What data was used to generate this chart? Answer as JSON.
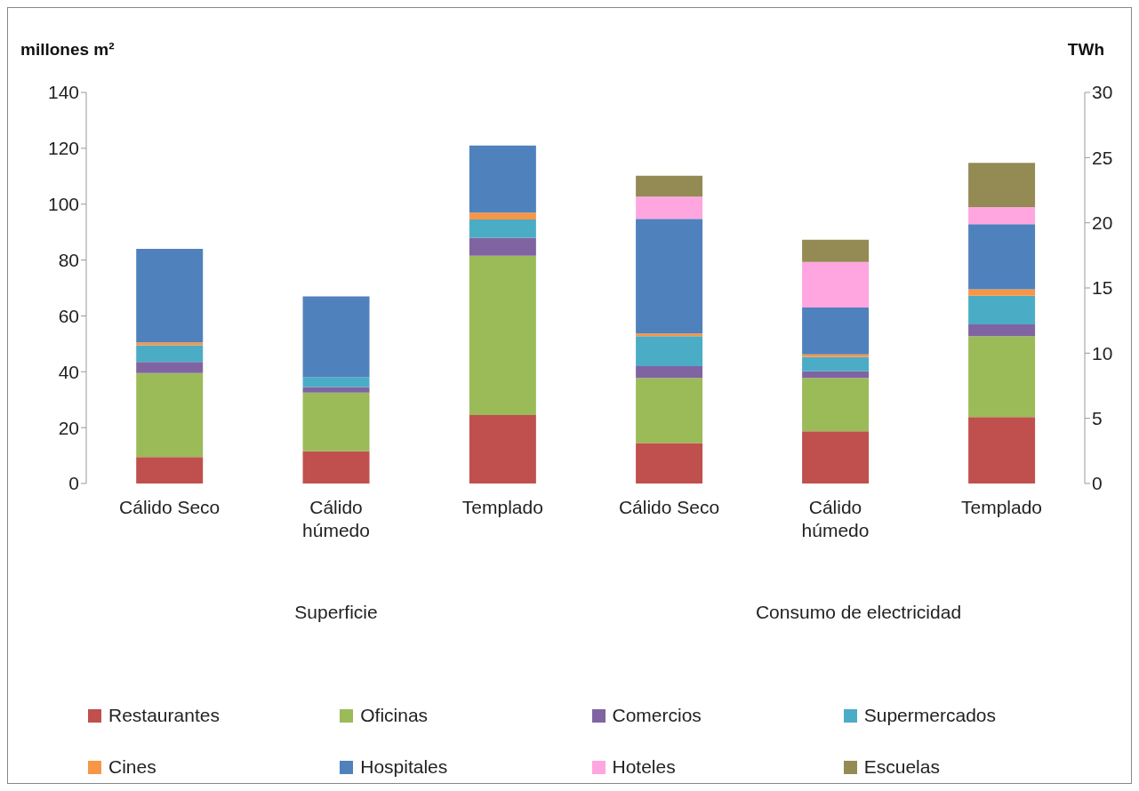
{
  "chart_data": [
    {
      "type": "bar",
      "stacked": true,
      "xlabel": "Superficie",
      "ylabel": "millones m²",
      "categories": [
        "Cálido Seco",
        "Cálido húmedo",
        "Templado"
      ],
      "ylim": [
        0,
        140
      ],
      "yticks": [
        0,
        20,
        40,
        60,
        80,
        100,
        120,
        140
      ],
      "series": [
        {
          "color": "#c0504d",
          "values": [
            9.5,
            11.5,
            24.5
          ]
        },
        {
          "color": "#9bbb59",
          "values": [
            30,
            21,
            57
          ]
        },
        {
          "color": "#8064a2",
          "values": [
            4,
            2,
            6.5
          ]
        },
        {
          "color": "#4bacc6",
          "values": [
            6,
            3.5,
            6.5
          ]
        },
        {
          "color": "#f79646",
          "values": [
            1,
            0,
            2.5
          ]
        },
        {
          "color": "#4f81bd",
          "values": [
            33.5,
            29,
            24
          ]
        }
      ]
    },
    {
      "type": "bar",
      "stacked": true,
      "xlabel": "Consumo de electricidad",
      "y2label": "TWh",
      "categories": [
        "Cálido Seco",
        "Cálido húmedo",
        "Templado"
      ],
      "y2lim": [
        0,
        30
      ],
      "y2ticks": [
        0,
        5,
        10,
        15,
        20,
        25,
        30
      ],
      "legend": "bottom",
      "series": [
        {
          "name": "Restaurantes",
          "color": "#c0504d",
          "axis": "y2",
          "values": [
            3.1,
            4.0,
            5.1
          ]
        },
        {
          "name": "Oficinas",
          "color": "#9bbb59",
          "axis": "y2",
          "values": [
            5.0,
            4.1,
            6.2
          ]
        },
        {
          "name": "Comercios",
          "color": "#8064a2",
          "axis": "y2",
          "values": [
            0.9,
            0.5,
            0.9
          ]
        },
        {
          "name": "Supermercados",
          "color": "#4bacc6",
          "axis": "y2",
          "values": [
            2.3,
            1.1,
            2.2
          ]
        },
        {
          "name": "Cines",
          "color": "#f79646",
          "axis": "y2",
          "values": [
            0.2,
            0.2,
            0.5
          ]
        },
        {
          "name": "Hospitales",
          "color": "#4f81bd",
          "axis": "y2",
          "values": [
            8.8,
            3.6,
            5.0
          ]
        },
        {
          "name": "Hoteles",
          "color": "#ffa6e0",
          "axis": "y2",
          "values": [
            1.7,
            3.5,
            1.3
          ]
        },
        {
          "name": "Escuelas",
          "color": "#948a54",
          "axis": "y2",
          "values": [
            1.6,
            1.7,
            3.4
          ]
        }
      ]
    }
  ]
}
